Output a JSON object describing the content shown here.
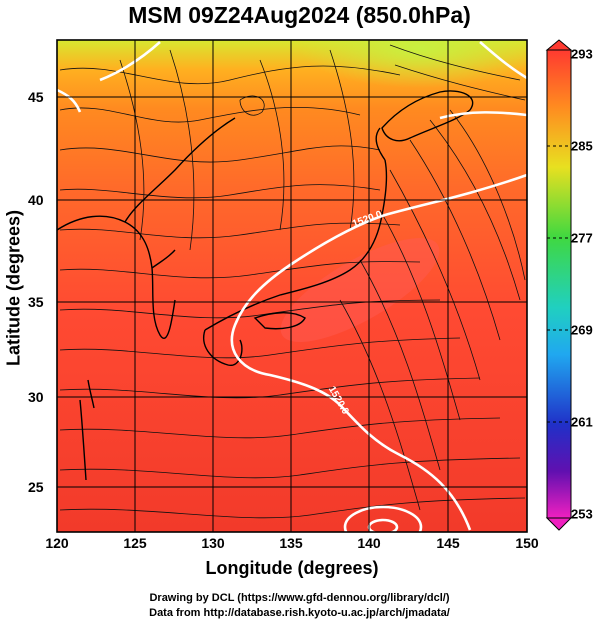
{
  "title": "MSM 09Z24Aug2024 (850.0hPa)",
  "axes": {
    "xlabel": "Longitude (degrees)",
    "ylabel": "Latitude  (degrees)",
    "xticks": [
      "120",
      "125",
      "130",
      "135",
      "140",
      "145",
      "150"
    ],
    "yticks": [
      "45",
      "40",
      "35",
      "30",
      "25"
    ]
  },
  "colorbar": {
    "ticks": [
      "293",
      "285",
      "277",
      "269",
      "261",
      "253"
    ]
  },
  "contour_labels": [
    "1520.0",
    "1520.0"
  ],
  "credits": {
    "line1": "Drawing by DCL (https://www.gfd-dennou.org/library/dcl/)",
    "line2": "Data from http://database.rish.kyoto-u.ac.jp/arch/jmadata/"
  },
  "chart_data": {
    "type": "heatmap",
    "title": "MSM 09Z24Aug2024 (850.0hPa)",
    "xlabel": "Longitude (degrees)",
    "ylabel": "Latitude  (degrees)",
    "xlim": [
      120,
      150
    ],
    "ylim": [
      22.5,
      47.5
    ],
    "colorbar_range": [
      253,
      293
    ],
    "colorbar_ticks": [
      293,
      285,
      277,
      269,
      261,
      253
    ],
    "overlays": [
      "streamlines",
      "coastlines",
      "1520.0 m height contour (white)"
    ],
    "grid": true
  }
}
